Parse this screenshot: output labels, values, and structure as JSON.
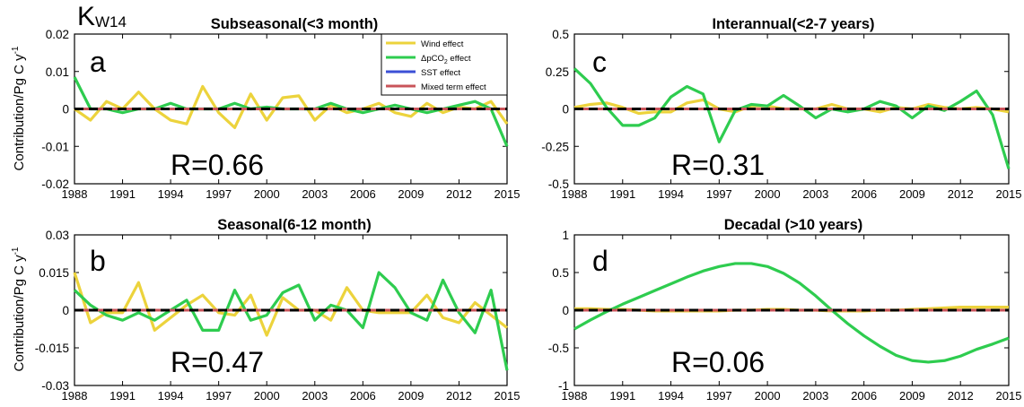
{
  "figure_label": {
    "main": "K",
    "sub": "W14"
  },
  "ylabel": "Contribution/Pg C y",
  "ylabel_sup": "-1",
  "legend": [
    {
      "label": "Wind effect",
      "color": "#ecd33c"
    },
    {
      "label": "ΔpCO",
      "sub": "2",
      "suffix": " effect",
      "color": "#2ecc4f"
    },
    {
      "label": "SST effect",
      "color": "#3b4fd6"
    },
    {
      "label": "Mixed term effect",
      "color": "#c9545a"
    }
  ],
  "chart_data": [
    {
      "type": "line",
      "panel": "a",
      "title": "Subseasonal(<3 month)",
      "r_label": "R=0.66",
      "xlim": [
        1988,
        2015
      ],
      "ylim": [
        -0.02,
        0.02
      ],
      "xticks": [
        "1988",
        "1991",
        "1994",
        "1997",
        "2000",
        "2003",
        "2006",
        "2009",
        "2012",
        "2015"
      ],
      "yticks": [
        "0.02",
        "0.01",
        "0",
        "-0.01",
        "-0.02"
      ],
      "ytick_values": [
        0.02,
        0.01,
        0,
        -0.01,
        -0.02
      ],
      "x": [
        1988,
        1989,
        1990,
        1991,
        1992,
        1993,
        1994,
        1995,
        1996,
        1997,
        1998,
        1999,
        2000,
        2001,
        2002,
        2003,
        2004,
        2005,
        2006,
        2007,
        2008,
        2009,
        2010,
        2011,
        2012,
        2013,
        2014,
        2015
      ],
      "series": [
        {
          "name": "Wind effect",
          "color": "#ecd33c",
          "values": [
            0.0,
            -0.003,
            0.002,
            0.0,
            0.0045,
            0.0,
            -0.003,
            -0.004,
            0.006,
            -0.001,
            -0.005,
            0.004,
            -0.003,
            0.003,
            0.0035,
            -0.003,
            0.001,
            -0.001,
            0.0,
            0.0015,
            -0.001,
            -0.002,
            0.0015,
            -0.001,
            0.0005,
            0.0,
            0.002,
            -0.004
          ]
        },
        {
          "name": "ΔpCO2 effect",
          "color": "#2ecc4f",
          "values": [
            0.0085,
            0.0,
            0.0,
            -0.001,
            0.0,
            0.0,
            0.0015,
            0.0,
            0.0,
            0.0,
            0.0015,
            0.0,
            0.0005,
            0.0,
            0.0,
            0.0,
            0.0015,
            0.0,
            -0.001,
            0.0,
            0.001,
            0.0,
            -0.001,
            0.0,
            0.001,
            0.002,
            0.0,
            -0.01
          ]
        },
        {
          "name": "SST effect",
          "color": "#3b4fd6",
          "values": [
            0,
            0,
            0,
            0,
            0,
            0,
            0,
            0,
            0,
            0,
            0,
            0,
            0,
            0,
            0,
            0,
            0,
            0,
            0,
            0,
            0,
            0,
            0,
            0,
            0,
            0,
            0,
            0
          ]
        },
        {
          "name": "Mixed term effect",
          "color": "#c9545a",
          "values": [
            0,
            0,
            0,
            0,
            0,
            0,
            0,
            0,
            0,
            0,
            0,
            0,
            0,
            0,
            0,
            0,
            0,
            0,
            0,
            0,
            0,
            0,
            0,
            0,
            0,
            0,
            0,
            0
          ]
        }
      ],
      "zero_line": true
    },
    {
      "type": "line",
      "panel": "b",
      "title": "Seasonal(6-12 month)",
      "r_label": "R=0.47",
      "xlim": [
        1988,
        2015
      ],
      "ylim": [
        -0.03,
        0.03
      ],
      "xticks": [
        "1988",
        "1991",
        "1994",
        "1997",
        "2000",
        "2003",
        "2006",
        "2009",
        "2012",
        "2015"
      ],
      "yticks": [
        "0.03",
        "0.015",
        "0",
        "-0.015",
        "-0.03"
      ],
      "ytick_values": [
        0.03,
        0.015,
        0,
        -0.015,
        -0.03
      ],
      "x": [
        1988,
        1989,
        1990,
        1991,
        1992,
        1993,
        1994,
        1995,
        1996,
        1997,
        1998,
        1999,
        2000,
        2001,
        2002,
        2003,
        2004,
        2005,
        2006,
        2007,
        2008,
        2009,
        2010,
        2011,
        2012,
        2013,
        2014,
        2015
      ],
      "series": [
        {
          "name": "Wind effect",
          "color": "#ecd33c",
          "values": [
            0.015,
            -0.005,
            -0.001,
            -0.001,
            0.011,
            -0.008,
            -0.003,
            0.002,
            0.006,
            -0.001,
            -0.002,
            0.006,
            -0.01,
            0.005,
            0.0,
            0.0,
            -0.004,
            0.009,
            0.0,
            -0.001,
            -0.001,
            -0.001,
            0.006,
            -0.003,
            -0.005,
            0.003,
            -0.002,
            -0.007
          ]
        },
        {
          "name": "ΔpCO2 effect",
          "color": "#2ecc4f",
          "values": [
            0.008,
            0.002,
            -0.002,
            -0.004,
            -0.001,
            -0.004,
            0.0,
            0.004,
            -0.008,
            -0.008,
            0.008,
            -0.004,
            -0.002,
            0.007,
            0.01,
            -0.004,
            0.002,
            0.0,
            -0.007,
            0.015,
            0.009,
            -0.001,
            -0.004,
            0.012,
            -0.001,
            -0.009,
            0.008,
            -0.024
          ]
        },
        {
          "name": "SST effect",
          "color": "#3b4fd6",
          "values": [
            0,
            0,
            0,
            0,
            0,
            0,
            0,
            0,
            0,
            0,
            0,
            0,
            0,
            0,
            0,
            0,
            0,
            0,
            0,
            0,
            0,
            0,
            0,
            0,
            0,
            0,
            0,
            0
          ]
        },
        {
          "name": "Mixed term effect",
          "color": "#c9545a",
          "values": [
            0,
            0,
            0,
            0,
            0,
            0,
            0,
            0,
            0,
            0,
            0,
            0,
            0,
            0,
            0,
            0,
            0,
            0,
            0,
            0,
            0,
            0,
            0,
            0,
            0,
            0,
            0,
            0
          ]
        }
      ],
      "zero_line": true
    },
    {
      "type": "line",
      "panel": "c",
      "title": "Interannual(<2-7 years)",
      "r_label": "R=0.31",
      "xlim": [
        1988,
        2015
      ],
      "ylim": [
        -0.5,
        0.5
      ],
      "xticks": [
        "1988",
        "1991",
        "1994",
        "1997",
        "2000",
        "2003",
        "2006",
        "2009",
        "2012",
        "2015"
      ],
      "yticks": [
        "0.5",
        "0.25",
        "0",
        "-0.25",
        "-0.5"
      ],
      "ytick_values": [
        0.5,
        0.25,
        0,
        -0.25,
        -0.5
      ],
      "x": [
        1988,
        1989,
        1990,
        1991,
        1992,
        1993,
        1994,
        1995,
        1996,
        1997,
        1998,
        1999,
        2000,
        2001,
        2002,
        2003,
        2004,
        2005,
        2006,
        2007,
        2008,
        2009,
        2010,
        2011,
        2012,
        2013,
        2014,
        2015
      ],
      "series": [
        {
          "name": "Wind effect",
          "color": "#ecd33c",
          "values": [
            0.01,
            0.03,
            0.04,
            0.01,
            -0.03,
            -0.02,
            -0.02,
            0.04,
            0.06,
            0.0,
            -0.02,
            0.02,
            0.02,
            0.0,
            0.0,
            0.0,
            0.03,
            0.0,
            0.0,
            -0.02,
            0.01,
            0.0,
            0.03,
            0.01,
            0.0,
            0.01,
            0.0,
            -0.02
          ]
        },
        {
          "name": "ΔpCO2 effect",
          "color": "#2ecc4f",
          "values": [
            0.27,
            0.17,
            0.01,
            -0.11,
            -0.11,
            -0.06,
            0.08,
            0.15,
            0.1,
            -0.22,
            -0.01,
            0.03,
            0.02,
            0.09,
            0.02,
            -0.06,
            0.0,
            -0.02,
            0.0,
            0.05,
            0.02,
            -0.06,
            0.02,
            -0.01,
            0.05,
            0.12,
            -0.04,
            -0.4
          ]
        },
        {
          "name": "SST effect",
          "color": "#3b4fd6",
          "values": [
            0,
            0,
            0,
            0,
            0,
            0,
            0,
            0,
            0,
            0,
            0,
            0,
            0,
            0,
            0,
            0,
            0,
            0,
            0,
            0,
            0,
            0,
            0,
            0,
            0,
            0,
            0,
            0
          ]
        },
        {
          "name": "Mixed term effect",
          "color": "#c9545a",
          "values": [
            0,
            0,
            0,
            0,
            0,
            0,
            0,
            0,
            0,
            0,
            0,
            0,
            0,
            0,
            0,
            0,
            0,
            0,
            0,
            0,
            0,
            0,
            0,
            0,
            0,
            0,
            0,
            0
          ]
        }
      ],
      "zero_line": true
    },
    {
      "type": "line",
      "panel": "d",
      "title": "Decadal (>10 years)",
      "r_label": "R=0.06",
      "xlim": [
        1988,
        2015
      ],
      "ylim": [
        -1,
        1
      ],
      "xticks": [
        "1988",
        "1991",
        "1994",
        "1997",
        "2000",
        "2003",
        "2006",
        "2009",
        "2012",
        "2015"
      ],
      "yticks": [
        "1",
        "0.5",
        "0",
        "-0.5",
        "-1"
      ],
      "ytick_values": [
        1,
        0.5,
        0,
        -0.5,
        -1
      ],
      "x": [
        1988,
        1989,
        1990,
        1991,
        1992,
        1993,
        1994,
        1995,
        1996,
        1997,
        1998,
        1999,
        2000,
        2001,
        2002,
        2003,
        2004,
        2005,
        2006,
        2007,
        2008,
        2009,
        2010,
        2011,
        2012,
        2013,
        2014,
        2015
      ],
      "series": [
        {
          "name": "Wind effect",
          "color": "#ecd33c",
          "values": [
            0.02,
            0.02,
            0.01,
            0.01,
            0.0,
            -0.01,
            -0.01,
            -0.01,
            -0.01,
            -0.01,
            0.0,
            0.0,
            0.01,
            0.01,
            0.0,
            0.0,
            -0.01,
            -0.01,
            -0.01,
            0.0,
            0.0,
            0.01,
            0.02,
            0.03,
            0.04,
            0.04,
            0.04,
            0.04
          ]
        },
        {
          "name": "ΔpCO2 effect",
          "color": "#2ecc4f",
          "values": [
            -0.25,
            -0.13,
            -0.02,
            0.08,
            0.17,
            0.26,
            0.35,
            0.44,
            0.52,
            0.58,
            0.62,
            0.62,
            0.58,
            0.49,
            0.36,
            0.19,
            0.0,
            -0.18,
            -0.34,
            -0.48,
            -0.6,
            -0.67,
            -0.69,
            -0.67,
            -0.61,
            -0.52,
            -0.45,
            -0.37
          ]
        },
        {
          "name": "SST effect",
          "color": "#3b4fd6",
          "values": [
            0,
            0,
            0,
            0,
            0,
            0,
            0,
            0,
            0,
            0,
            0,
            0,
            0,
            0,
            0,
            0,
            0,
            0,
            0,
            0,
            0,
            0,
            0,
            0,
            0,
            0,
            0,
            0
          ]
        },
        {
          "name": "Mixed term effect",
          "color": "#c9545a",
          "values": [
            0,
            0,
            0,
            0,
            0,
            0,
            0,
            0,
            0,
            0,
            0,
            0,
            0,
            0,
            0,
            0,
            0,
            0,
            0,
            0,
            0,
            0,
            0,
            0,
            0,
            0,
            0,
            0
          ]
        }
      ],
      "zero_line": true
    }
  ]
}
